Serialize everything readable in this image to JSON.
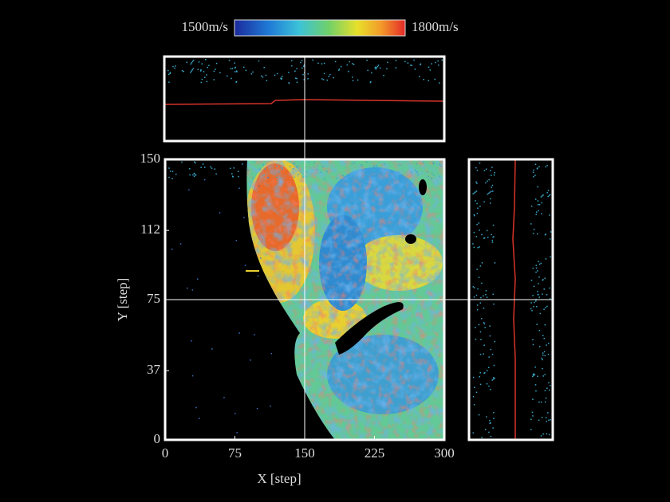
{
  "chart_data": {
    "type": "heatmap",
    "xlabel": "X [step]",
    "ylabel": "Y [step]",
    "xlim": [
      0,
      300
    ],
    "ylim": [
      0,
      150
    ],
    "xticks": [
      0,
      75,
      150,
      225,
      300
    ],
    "yticks": [
      0,
      37,
      75,
      112,
      150
    ],
    "colorbar": {
      "lim": [
        1500,
        1800
      ],
      "ticks": [
        {
          "value": 1500,
          "label": "1500m/s"
        },
        {
          "value": 1800,
          "label": "1800m/s"
        }
      ]
    },
    "crosshair": {
      "x": 150,
      "y": 75
    }
  }
}
